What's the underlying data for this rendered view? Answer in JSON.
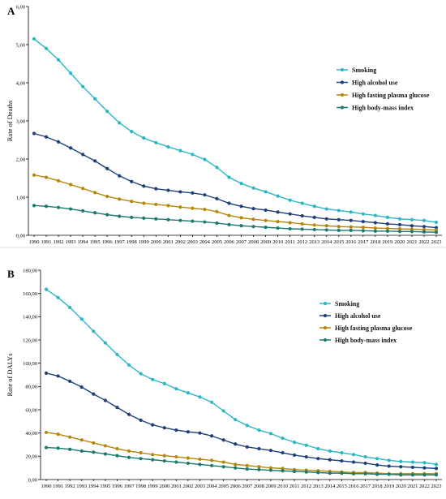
{
  "chart_data": [
    {
      "type": "line",
      "panel_label": "A",
      "title": "",
      "xlabel": "",
      "ylabel": "Rate of Deaths",
      "ylim": [
        0,
        6
      ],
      "y_ticks": [
        "0,00",
        "1,00",
        "2,00",
        "3,00",
        "4,00",
        "5,00",
        "6,00"
      ],
      "x": [
        "1990",
        "1991",
        "1992",
        "1993",
        "1994",
        "1995",
        "1996",
        "1997",
        "1998",
        "1999",
        "2000",
        "2001",
        "2002",
        "2003",
        "2004",
        "2005",
        "2006",
        "2007",
        "2008",
        "2009",
        "2010",
        "2011",
        "2012",
        "2013",
        "2014",
        "2015",
        "2016",
        "2017",
        "2018",
        "2019",
        "2020",
        "2021",
        "2022",
        "2023"
      ],
      "grid": false,
      "legend_position": "right",
      "series": [
        {
          "name": "Smoking",
          "color": "#2ab7c4",
          "values": [
            5.15,
            4.9,
            4.6,
            4.25,
            3.9,
            3.58,
            3.25,
            2.95,
            2.72,
            2.55,
            2.43,
            2.32,
            2.22,
            2.12,
            1.99,
            1.78,
            1.52,
            1.36,
            1.24,
            1.14,
            1.03,
            0.92,
            0.84,
            0.76,
            0.69,
            0.65,
            0.61,
            0.56,
            0.52,
            0.47,
            0.43,
            0.41,
            0.39,
            0.34
          ]
        },
        {
          "name": "High alcohol use",
          "color": "#1f3f7a",
          "values": [
            2.67,
            2.58,
            2.45,
            2.29,
            2.12,
            1.95,
            1.75,
            1.56,
            1.41,
            1.29,
            1.22,
            1.18,
            1.14,
            1.11,
            1.06,
            0.96,
            0.84,
            0.76,
            0.7,
            0.66,
            0.61,
            0.56,
            0.51,
            0.47,
            0.43,
            0.41,
            0.39,
            0.36,
            0.33,
            0.3,
            0.28,
            0.25,
            0.23,
            0.2
          ]
        },
        {
          "name": "High fasting plasma glucose",
          "color": "#b8860b",
          "values": [
            1.58,
            1.52,
            1.43,
            1.33,
            1.23,
            1.12,
            1.02,
            0.95,
            0.89,
            0.84,
            0.81,
            0.78,
            0.74,
            0.71,
            0.68,
            0.62,
            0.52,
            0.46,
            0.42,
            0.39,
            0.36,
            0.33,
            0.3,
            0.27,
            0.25,
            0.23,
            0.22,
            0.21,
            0.19,
            0.18,
            0.17,
            0.16,
            0.15,
            0.14
          ]
        },
        {
          "name": "High body-mass index",
          "color": "#1b7a6e",
          "values": [
            0.78,
            0.76,
            0.73,
            0.69,
            0.64,
            0.59,
            0.54,
            0.5,
            0.47,
            0.45,
            0.43,
            0.41,
            0.39,
            0.37,
            0.35,
            0.32,
            0.28,
            0.25,
            0.23,
            0.21,
            0.19,
            0.17,
            0.16,
            0.15,
            0.14,
            0.13,
            0.13,
            0.12,
            0.11,
            0.11,
            0.1,
            0.1,
            0.09,
            0.08
          ]
        }
      ]
    },
    {
      "type": "line",
      "panel_label": "B",
      "title": "",
      "xlabel": "",
      "ylabel": "Rate of DALYs",
      "ylim": [
        0,
        180
      ],
      "y_ticks": [
        "0,00",
        "20,00",
        "40,00",
        "60,00",
        "80,00",
        "100,00",
        "120,00",
        "140,00",
        "160,00",
        "180,00"
      ],
      "x": [
        "1990",
        "1991",
        "1992",
        "1993",
        "1994",
        "1995",
        "1996",
        "1997",
        "1998",
        "1999",
        "2000",
        "2001",
        "2002",
        "2003",
        "2004",
        "2005",
        "2006",
        "2007",
        "2008",
        "2009",
        "2010",
        "2011",
        "2012",
        "2013",
        "2014",
        "2015",
        "2016",
        "2017",
        "2018",
        "2019",
        "2020",
        "2021",
        "2022",
        "2023"
      ],
      "grid": false,
      "legend_position": "right",
      "series": [
        {
          "name": "Smoking",
          "color": "#2ab7c4",
          "values": [
            163.5,
            156.5,
            148.0,
            138.0,
            127.5,
            117.5,
            107.5,
            98.5,
            91.0,
            86.0,
            82.5,
            78.0,
            74.5,
            71.0,
            66.5,
            59.0,
            51.5,
            46.5,
            42.5,
            39.5,
            35.5,
            32.0,
            29.5,
            26.5,
            24.5,
            23.0,
            21.5,
            19.5,
            18.0,
            16.5,
            15.5,
            15.0,
            14.5,
            13.0
          ]
        },
        {
          "name": "High alcohol use",
          "color": "#1f3f7a",
          "values": [
            91.5,
            89.0,
            84.5,
            79.5,
            73.5,
            68.0,
            62.0,
            56.0,
            51.0,
            47.0,
            44.5,
            42.5,
            41.0,
            40.0,
            37.5,
            34.0,
            30.5,
            28.0,
            26.5,
            25.0,
            23.0,
            21.0,
            19.5,
            18.0,
            17.0,
            16.0,
            15.0,
            14.0,
            12.5,
            11.5,
            11.0,
            10.5,
            10.0,
            9.5
          ]
        },
        {
          "name": "High fasting plasma glucose",
          "color": "#b8860b",
          "values": [
            40.5,
            39.0,
            36.5,
            34.0,
            31.5,
            29.0,
            26.5,
            24.5,
            23.0,
            21.5,
            20.5,
            19.5,
            18.5,
            17.5,
            16.5,
            15.0,
            13.0,
            12.0,
            11.0,
            10.0,
            9.5,
            8.5,
            8.0,
            7.5,
            7.0,
            6.5,
            6.0,
            6.0,
            5.5,
            5.0,
            5.0,
            5.0,
            5.0,
            5.0
          ]
        },
        {
          "name": "High body-mass index",
          "color": "#1b7a6e",
          "values": [
            27.5,
            27.0,
            26.0,
            24.5,
            23.5,
            22.0,
            20.5,
            19.0,
            18.0,
            17.0,
            16.0,
            15.0,
            14.0,
            13.0,
            12.0,
            11.0,
            10.0,
            9.0,
            8.5,
            8.0,
            7.5,
            7.0,
            6.5,
            6.0,
            5.5,
            5.5,
            5.0,
            5.0,
            4.5,
            4.5,
            4.0,
            4.0,
            4.0,
            4.0
          ]
        }
      ]
    }
  ]
}
